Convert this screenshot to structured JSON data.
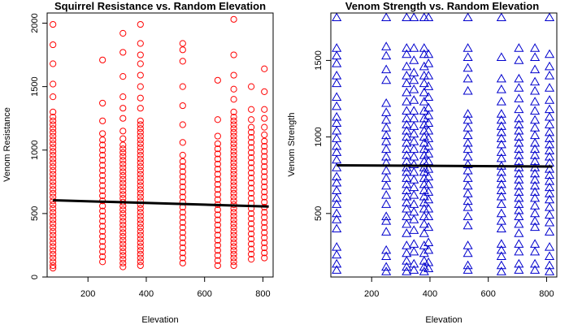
{
  "chart_data": [
    {
      "type": "scatter",
      "title": "Squirrel Resistance vs. Random Elevation",
      "xlabel": "Elevation",
      "ylabel": "Venom Resistance",
      "xlim": [
        60,
        835
      ],
      "ylim": [
        0,
        2080
      ],
      "xticks": [
        200,
        400,
        600,
        800
      ],
      "yticks": [
        0,
        500,
        1000,
        1500,
        2000
      ],
      "marker": "circle",
      "color": "#ff0000",
      "trend_color": "#000000",
      "grid": false,
      "columns": [
        {
          "x": 80,
          "y": [
            70,
            90,
            120,
            150,
            180,
            210,
            240,
            270,
            300,
            330,
            360,
            390,
            420,
            450,
            480,
            510,
            540,
            570,
            600,
            630,
            660,
            690,
            720,
            750,
            780,
            810,
            840,
            870,
            900,
            930,
            960,
            990,
            1020,
            1050,
            1080,
            1110,
            1140,
            1170,
            1200,
            1230,
            1260,
            1300,
            1420,
            1520,
            1680,
            1830,
            1990
          ]
        },
        {
          "x": 250,
          "y": [
            120,
            160,
            200,
            240,
            280,
            320,
            360,
            400,
            440,
            480,
            520,
            560,
            600,
            640,
            680,
            720,
            760,
            800,
            840,
            880,
            920,
            960,
            1000,
            1040,
            1080,
            1130,
            1230,
            1370,
            1710
          ]
        },
        {
          "x": 320,
          "y": [
            80,
            110,
            140,
            170,
            200,
            230,
            260,
            290,
            320,
            350,
            380,
            410,
            440,
            470,
            500,
            530,
            560,
            590,
            620,
            650,
            680,
            710,
            740,
            770,
            800,
            830,
            860,
            890,
            920,
            950,
            980,
            1010,
            1040,
            1090,
            1150,
            1250,
            1330,
            1420,
            1580,
            1770,
            1920
          ]
        },
        {
          "x": 380,
          "y": [
            90,
            120,
            150,
            180,
            210,
            240,
            270,
            300,
            330,
            360,
            390,
            420,
            450,
            480,
            510,
            540,
            570,
            600,
            630,
            660,
            690,
            720,
            750,
            780,
            810,
            840,
            870,
            900,
            930,
            960,
            990,
            1020,
            1050,
            1080,
            1110,
            1140,
            1170,
            1200,
            1230,
            1330,
            1410,
            1500,
            1590,
            1680,
            1750,
            1840,
            1990
          ]
        },
        {
          "x": 525,
          "y": [
            110,
            150,
            190,
            230,
            270,
            310,
            350,
            390,
            430,
            470,
            510,
            550,
            590,
            630,
            670,
            710,
            750,
            790,
            830,
            870,
            910,
            960,
            1060,
            1200,
            1350,
            1500,
            1700,
            1790,
            1840
          ]
        },
        {
          "x": 645,
          "y": [
            90,
            130,
            170,
            210,
            250,
            290,
            330,
            370,
            410,
            450,
            490,
            530,
            570,
            610,
            650,
            690,
            730,
            770,
            810,
            850,
            890,
            930,
            970,
            1010,
            1050,
            1110,
            1240,
            1550
          ]
        },
        {
          "x": 700,
          "y": [
            90,
            120,
            150,
            180,
            210,
            240,
            270,
            300,
            330,
            360,
            390,
            420,
            450,
            480,
            510,
            540,
            570,
            600,
            630,
            660,
            690,
            720,
            750,
            780,
            810,
            840,
            870,
            900,
            930,
            960,
            990,
            1020,
            1050,
            1080,
            1110,
            1140,
            1170,
            1200,
            1230,
            1260,
            1300,
            1400,
            1480,
            1590,
            1750,
            2030
          ]
        },
        {
          "x": 760,
          "y": [
            140,
            180,
            220,
            260,
            300,
            340,
            380,
            420,
            460,
            500,
            540,
            580,
            620,
            660,
            700,
            740,
            780,
            820,
            860,
            900,
            940,
            980,
            1020,
            1060,
            1100,
            1140,
            1180,
            1240,
            1320,
            1500
          ]
        },
        {
          "x": 805,
          "y": [
            150,
            190,
            230,
            270,
            310,
            350,
            390,
            430,
            470,
            510,
            550,
            590,
            630,
            670,
            710,
            750,
            790,
            830,
            870,
            910,
            950,
            990,
            1030,
            1070,
            1120,
            1180,
            1250,
            1320,
            1460,
            1640
          ]
        }
      ],
      "trend": [
        [
          80,
          605
        ],
        [
          820,
          555
        ]
      ]
    },
    {
      "type": "scatter",
      "title": "Venom Strength vs. Random Elevation",
      "xlabel": "Elevation",
      "ylabel": "Venom Strength",
      "xlim": [
        60,
        835
      ],
      "ylim": [
        85,
        1810
      ],
      "xticks": [
        200,
        400,
        600,
        800
      ],
      "yticks": [
        500,
        1000,
        1500
      ],
      "marker": "triangle",
      "color": "#0000cd",
      "trend_color": "#000000",
      "grid": false,
      "columns": [
        {
          "x": 80,
          "y": [
            130,
            170,
            230,
            280,
            400,
            460,
            500,
            560,
            600,
            650,
            700,
            740,
            800,
            850,
            900,
            940,
            990,
            1040,
            1090,
            1130,
            1200,
            1260,
            1350,
            1400,
            1480,
            1530,
            1580,
            1780
          ]
        },
        {
          "x": 250,
          "y": [
            120,
            150,
            220,
            260,
            380,
            450,
            480,
            560,
            620,
            680,
            730,
            780,
            830,
            870,
            920,
            970,
            1010,
            1060,
            1110,
            1160,
            1220,
            1370,
            1440,
            1530,
            1590,
            1780
          ]
        },
        {
          "x": 320,
          "y": [
            120,
            150,
            190,
            240,
            290,
            370,
            430,
            480,
            530,
            570,
            610,
            650,
            690,
            730,
            770,
            800,
            840,
            880,
            920,
            960,
            1000,
            1040,
            1080,
            1120,
            1170,
            1230,
            1290,
            1350,
            1400,
            1460,
            1540,
            1580,
            1780
          ]
        },
        {
          "x": 345,
          "y": [
            130,
            170,
            250,
            300,
            390,
            460,
            510,
            560,
            620,
            670,
            720,
            770,
            820,
            870,
            920,
            970,
            1020,
            1070,
            1120,
            1170,
            1240,
            1310,
            1370,
            1420,
            1500,
            1580,
            1780
          ]
        },
        {
          "x": 380,
          "y": [
            120,
            150,
            190,
            240,
            290,
            370,
            430,
            480,
            530,
            570,
            610,
            650,
            690,
            730,
            770,
            800,
            840,
            880,
            920,
            960,
            1000,
            1040,
            1080,
            1120,
            1170,
            1230,
            1290,
            1350,
            1400,
            1460,
            1540,
            1580,
            1780
          ]
        },
        {
          "x": 395,
          "y": [
            140,
            180,
            260,
            310,
            410,
            480,
            530,
            590,
            640,
            690,
            740,
            790,
            840,
            890,
            940,
            990,
            1040,
            1090,
            1140,
            1190,
            1260,
            1330,
            1400,
            1480,
            1540,
            1780
          ]
        },
        {
          "x": 530,
          "y": [
            130,
            160,
            240,
            290,
            420,
            480,
            540,
            580,
            630,
            680,
            730,
            780,
            820,
            870,
            920,
            960,
            1010,
            1060,
            1110,
            1150,
            1300,
            1380,
            1450,
            1520,
            1580,
            1780
          ]
        },
        {
          "x": 645,
          "y": [
            120,
            160,
            220,
            260,
            300,
            400,
            450,
            500,
            560,
            610,
            650,
            690,
            730,
            770,
            810,
            860,
            900,
            950,
            990,
            1030,
            1070,
            1110,
            1150,
            1230,
            1310,
            1380,
            1520,
            1780
          ]
        },
        {
          "x": 705,
          "y": [
            130,
            170,
            250,
            300,
            370,
            430,
            480,
            520,
            560,
            600,
            640,
            680,
            720,
            760,
            800,
            840,
            880,
            920,
            960,
            1000,
            1040,
            1080,
            1120,
            1180,
            1250,
            1320,
            1380,
            1500,
            1580
          ]
        },
        {
          "x": 760,
          "y": [
            130,
            170,
            250,
            300,
            410,
            450,
            500,
            550,
            600,
            640,
            680,
            720,
            760,
            800,
            840,
            880,
            920,
            960,
            1010,
            1060,
            1110,
            1170,
            1230,
            1300,
            1360,
            1440,
            1520,
            1580
          ]
        },
        {
          "x": 810,
          "y": [
            120,
            160,
            220,
            280,
            380,
            440,
            490,
            540,
            590,
            630,
            670,
            710,
            750,
            790,
            830,
            870,
            910,
            950,
            990,
            1030,
            1080,
            1130,
            1180,
            1240,
            1320,
            1400,
            1460,
            1540,
            1780
          ]
        }
      ],
      "trend": [
        [
          80,
          815
        ],
        [
          820,
          807
        ]
      ]
    }
  ]
}
